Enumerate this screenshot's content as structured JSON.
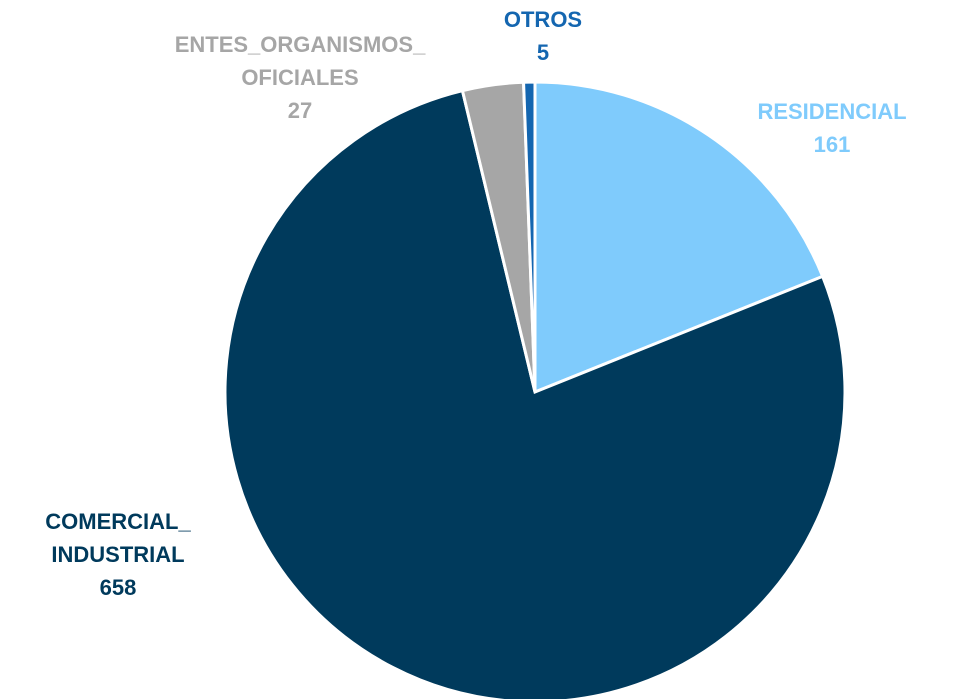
{
  "chart_data": {
    "type": "pie",
    "categories": [
      "RESIDENCIAL",
      "COMERCIAL_\nINDUSTRIAL",
      "ENTES_ORGANISMOS_\nOFICIALES",
      "OTROS"
    ],
    "values": [
      161,
      658,
      27,
      5
    ],
    "colors": [
      "#7fcbfc",
      "#003a5c",
      "#a6a6a6",
      "#1466b0"
    ],
    "label_colors": [
      "#7fcbfc",
      "#003a5c",
      "#a6a6a6",
      "#1466b0"
    ]
  }
}
